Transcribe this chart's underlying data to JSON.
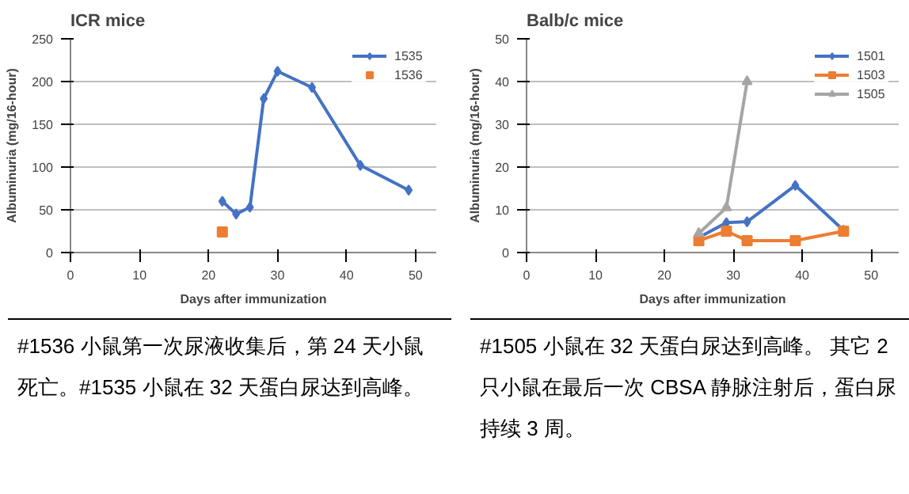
{
  "chart_data": [
    {
      "type": "line",
      "title": "ICR mice",
      "xlabel": "Days after immunization",
      "ylabel": "Albuminuria (mg/16-hour)",
      "xlim": [
        0,
        53
      ],
      "xticks": [
        0,
        10,
        20,
        30,
        40,
        50
      ],
      "ylim": [
        0,
        250
      ],
      "yticks": [
        0,
        50,
        100,
        150,
        200,
        250
      ],
      "grid": "y",
      "legend": "top right",
      "series": [
        {
          "name": "1535",
          "color": "#4472c4",
          "marker": "diamond",
          "x": [
            22,
            24,
            26,
            28,
            30,
            35,
            42,
            49
          ],
          "values": [
            60,
            45,
            53,
            180,
            212,
            193,
            102,
            73
          ]
        },
        {
          "name": "1536",
          "color": "#ed7d31",
          "marker": "square",
          "x": [
            22
          ],
          "values": [
            24
          ]
        }
      ],
      "annotations": [
        "#1536 小鼠第一次尿液收集后，第 24 天小鼠死亡。#1535 小鼠在 32 天蛋白尿达到高峰。"
      ]
    },
    {
      "type": "line",
      "title": "Balb/c mice",
      "xlabel": "Days after immunization",
      "ylabel": "Albuminuria (mg/16-hour)",
      "xlim": [
        0,
        54
      ],
      "xticks": [
        0,
        10,
        20,
        30,
        40,
        50
      ],
      "ylim": [
        0,
        50
      ],
      "yticks": [
        0,
        10,
        20,
        30,
        40,
        50
      ],
      "grid": "y",
      "legend": "top right",
      "series": [
        {
          "name": "1501",
          "color": "#4472c4",
          "marker": "diamond",
          "x": [
            25,
            29,
            32,
            39,
            46
          ],
          "values": [
            3.5,
            7,
            7.2,
            15.7,
            5.2
          ]
        },
        {
          "name": "1503",
          "color": "#ed7d31",
          "marker": "square",
          "x": [
            25,
            29,
            32,
            39,
            46
          ],
          "values": [
            2.8,
            5,
            2.8,
            2.8,
            5
          ]
        },
        {
          "name": "1505",
          "color": "#a5a5a5",
          "marker": "triangle",
          "x": [
            25,
            29,
            32
          ],
          "values": [
            4.5,
            10.5,
            40
          ]
        }
      ],
      "annotations": [
        "#1505 小鼠在 32 天蛋白尿达到高峰。 其它 2 只小鼠在最后一次 CBSA 静脉注射后，蛋白尿持续 3 周。"
      ]
    }
  ]
}
